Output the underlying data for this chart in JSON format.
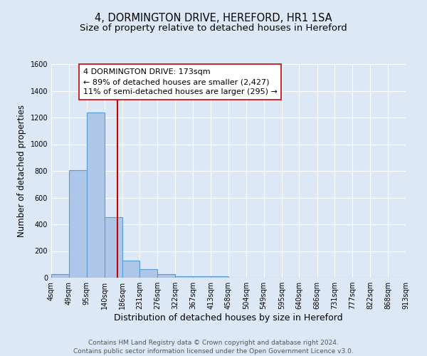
{
  "title": "4, DORMINGTON DRIVE, HEREFORD, HR1 1SA",
  "subtitle": "Size of property relative to detached houses in Hereford",
  "xlabel": "Distribution of detached houses by size in Hereford",
  "ylabel": "Number of detached properties",
  "bin_edges": [
    4,
    49,
    95,
    140,
    186,
    231,
    276,
    322,
    367,
    413,
    458,
    504,
    549,
    595,
    640,
    686,
    731,
    777,
    822,
    868,
    913
  ],
  "bar_heights": [
    25,
    805,
    1240,
    455,
    130,
    65,
    25,
    10,
    10,
    10,
    0,
    0,
    0,
    0,
    0,
    0,
    0,
    0,
    0,
    0
  ],
  "bar_color": "#aec6e8",
  "bar_edge_color": "#5b9bd5",
  "property_size": 173,
  "vline_color": "#cc0000",
  "annotation_line1": "4 DORMINGTON DRIVE: 173sqm",
  "annotation_line2": "← 89% of detached houses are smaller (2,427)",
  "annotation_line3": "11% of semi-detached houses are larger (295) →",
  "annotation_box_edgecolor": "#cc0000",
  "annotation_box_facecolor": "#ffffff",
  "ylim": [
    0,
    1600
  ],
  "yticks": [
    0,
    200,
    400,
    600,
    800,
    1000,
    1200,
    1400,
    1600
  ],
  "bg_color": "#dce8f5",
  "plot_bg_color": "#dce8f5",
  "grid_color": "#ffffff",
  "footer_line1": "Contains HM Land Registry data © Crown copyright and database right 2024.",
  "footer_line2": "Contains public sector information licensed under the Open Government Licence v3.0.",
  "title_fontsize": 10.5,
  "subtitle_fontsize": 9.5,
  "xlabel_fontsize": 9,
  "ylabel_fontsize": 8.5,
  "tick_fontsize": 7,
  "annotation_fontsize": 8,
  "footer_fontsize": 6.5
}
